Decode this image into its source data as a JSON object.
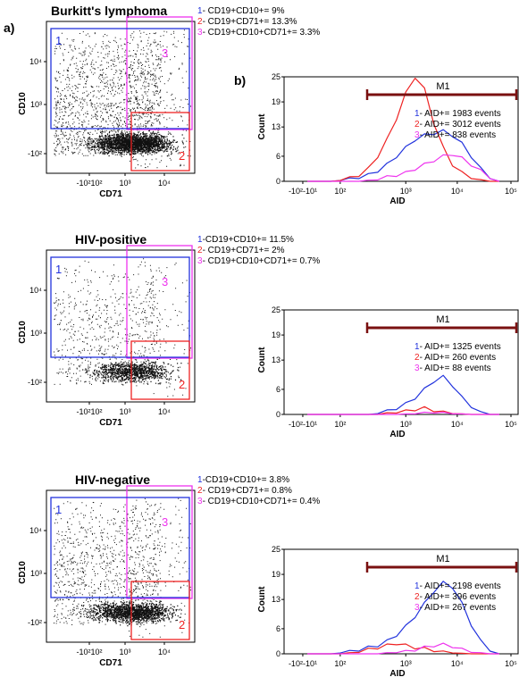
{
  "figure": {
    "label_a": "a)",
    "label_b": "b)"
  },
  "colors": {
    "blue": "#2233dd",
    "red": "#ee2222",
    "magenta": "#ee33ee",
    "marker": "#7a1010",
    "dots": "#111111"
  },
  "panels": [
    {
      "title": "Burkitt's lymphoma",
      "scatter": {
        "xlabel": "CD71",
        "ylabel": "CD10",
        "xticks": [
          "-10²10²",
          "10³",
          "10⁴"
        ],
        "yticks": [
          "10⁴",
          "10³",
          "-10²"
        ],
        "density": "high"
      },
      "gates": [
        {
          "id": "1",
          "num": "1",
          "text": "- CD19+CD10+= 9%",
          "color": "blue"
        },
        {
          "id": "2",
          "num": "2",
          "text": "- CD19+CD71+= 13.3%",
          "color": "red"
        },
        {
          "id": "3",
          "num": "3",
          "text": "- CD19+CD10+CD71+= 3.3%",
          "color": "magenta"
        }
      ],
      "histogram": {
        "marker_label": "M1",
        "xlabel": "AID",
        "ylabel": "Count",
        "yticks": [
          "25",
          "19",
          "13",
          "6",
          "0"
        ],
        "xticks": [
          "-10²-10¹",
          "10²",
          "10³",
          "10⁴",
          "10⁵"
        ],
        "legend": [
          {
            "num": "1",
            "text": "- AID+= 1983 events",
            "color": "blue"
          },
          {
            "num": "2",
            "text": "- AID+= 3012 events",
            "color": "red"
          },
          {
            "num": "3",
            "text": "- AID+= 838 events",
            "color": "magenta"
          }
        ]
      }
    },
    {
      "title": "HIV-positive",
      "scatter": {
        "xlabel": "CD71",
        "ylabel": "CD10",
        "xticks": [
          "-10²10²",
          "10³",
          "10⁴"
        ],
        "yticks": [
          "10⁴",
          "10³",
          "-10²"
        ],
        "density": "low"
      },
      "gates": [
        {
          "id": "1",
          "num": "1",
          "text": "-CD19+CD10+= 11.5%",
          "color": "blue"
        },
        {
          "id": "2",
          "num": "2",
          "text": "- CD19+CD71+= 2%",
          "color": "red"
        },
        {
          "id": "3",
          "num": "3",
          "text": "- CD19+CD10+CD71+= 0.7%",
          "color": "magenta"
        }
      ],
      "histogram": {
        "marker_label": "M1",
        "xlabel": "AID",
        "ylabel": "Count",
        "yticks": [
          "25",
          "19",
          "13",
          "6",
          "0"
        ],
        "xticks": [
          "-10²-10¹",
          "10²",
          "10³",
          "10⁴",
          "10⁵"
        ],
        "legend": [
          {
            "num": "1",
            "text": "- AID+= 1325 events",
            "color": "blue"
          },
          {
            "num": "2",
            "text": "- AID+= 260 events",
            "color": "red"
          },
          {
            "num": "3",
            "text": "- AID+= 88 events",
            "color": "magenta"
          }
        ]
      }
    },
    {
      "title": "HIV-negative",
      "scatter": {
        "xlabel": "CD71",
        "ylabel": "CD10",
        "xticks": [
          "-10²10²",
          "10³",
          "10⁴"
        ],
        "yticks": [
          "10⁴",
          "10³",
          "-10²"
        ],
        "density": "medium"
      },
      "gates": [
        {
          "id": "1",
          "num": "1",
          "text": "-CD19+CD10+= 3.8%",
          "color": "blue"
        },
        {
          "id": "2",
          "num": "2",
          "text": "- CD19+CD71+= 0.8%",
          "color": "red"
        },
        {
          "id": "3",
          "num": "3",
          "text": "- CD19+CD10+CD71+= 0.4%",
          "color": "magenta"
        }
      ],
      "histogram": {
        "marker_label": "M1",
        "xlabel": "AID",
        "ylabel": "Count",
        "yticks": [
          "25",
          "19",
          "13",
          "6",
          "0"
        ],
        "xticks": [
          "-10²-10¹",
          "10²",
          "10³",
          "10⁴",
          "10⁵"
        ],
        "legend": [
          {
            "num": "1",
            "text": "- AID+= 2198 events",
            "color": "blue"
          },
          {
            "num": "2",
            "text": "- AID+= 396 events",
            "color": "red"
          },
          {
            "num": "3",
            "text": "- AID+= 267 events",
            "color": "magenta"
          }
        ]
      }
    }
  ],
  "chart_data": [
    {
      "type": "histogram",
      "panel": "Burkitt's lymphoma",
      "ylabel": "Count",
      "xlabel": "AID",
      "ylim": [
        0,
        25
      ],
      "x": [
        0.5,
        0.8,
        1.0,
        1.2,
        1.4,
        1.6,
        1.8,
        2.0,
        2.2,
        2.4,
        2.6,
        2.8,
        3.0,
        3.2,
        3.4,
        3.6,
        3.8,
        4.0,
        4.2,
        4.4,
        4.6
      ],
      "series": [
        {
          "name": "1",
          "values": [
            0,
            0,
            0,
            0.3,
            0.6,
            1,
            1.5,
            2.5,
            4,
            6,
            8,
            10,
            11,
            11.5,
            12,
            11,
            9,
            6,
            3,
            1,
            0
          ]
        },
        {
          "name": "2",
          "values": [
            0,
            0,
            0,
            0.3,
            0.8,
            1.5,
            3,
            6,
            10,
            15,
            21,
            25,
            22,
            14,
            8,
            4,
            2,
            1,
            0.3,
            0,
            0
          ]
        },
        {
          "name": "3",
          "values": [
            0,
            0,
            0,
            0,
            0,
            0,
            0.2,
            0.5,
            1,
            1.5,
            2,
            3,
            4,
            5,
            6,
            6.5,
            5.5,
            4,
            2.5,
            1,
            0
          ]
        }
      ],
      "marker": {
        "label": "M1",
        "range": [
          2.5,
          5.0
        ]
      }
    },
    {
      "type": "histogram",
      "panel": "HIV-positive",
      "ylabel": "Count",
      "xlabel": "AID",
      "ylim": [
        0,
        25
      ],
      "x": [
        0.5,
        0.8,
        1.0,
        1.2,
        1.4,
        1.6,
        1.8,
        2.0,
        2.2,
        2.4,
        2.6,
        2.8,
        3.0,
        3.2,
        3.4,
        3.6,
        3.8,
        4.0,
        4.2,
        4.4,
        4.6
      ],
      "series": [
        {
          "name": "1",
          "values": [
            0,
            0,
            0,
            0,
            0,
            0,
            0,
            0.3,
            0.8,
            1.5,
            2.5,
            4,
            6,
            8,
            9,
            7,
            4,
            2,
            0.5,
            0,
            0
          ]
        },
        {
          "name": "2",
          "values": [
            0,
            0,
            0,
            0,
            0,
            0,
            0,
            0,
            0.3,
            0.5,
            0.8,
            1.2,
            1.5,
            1,
            0.6,
            0.3,
            0.1,
            0,
            0,
            0,
            0
          ]
        },
        {
          "name": "3",
          "values": [
            0,
            0,
            0,
            0,
            0,
            0,
            0,
            0,
            0,
            0,
            0.1,
            0.2,
            0.4,
            0.5,
            0.4,
            0.2,
            0.1,
            0,
            0,
            0,
            0
          ]
        }
      ],
      "marker": {
        "label": "M1",
        "range": [
          2.5,
          5.0
        ]
      }
    },
    {
      "type": "histogram",
      "panel": "HIV-negative",
      "ylabel": "Count",
      "xlabel": "AID",
      "ylim": [
        0,
        25
      ],
      "x": [
        0.5,
        0.8,
        1.0,
        1.2,
        1.4,
        1.6,
        1.8,
        2.0,
        2.2,
        2.4,
        2.6,
        2.8,
        3.0,
        3.2,
        3.4,
        3.6,
        3.8,
        4.0,
        4.2,
        4.4,
        4.6
      ],
      "series": [
        {
          "name": "1",
          "values": [
            0,
            0,
            0,
            0.3,
            0.6,
            1,
            1.5,
            2,
            3,
            4.5,
            6.5,
            9,
            12,
            15,
            17,
            16,
            12,
            7,
            3,
            1,
            0
          ]
        },
        {
          "name": "2",
          "values": [
            0,
            0,
            0,
            0,
            0.2,
            0.5,
            1,
            1.5,
            2,
            2.5,
            2,
            1.5,
            1.2,
            0.8,
            0.5,
            0.3,
            0.1,
            0,
            0,
            0,
            0
          ]
        },
        {
          "name": "3",
          "values": [
            0,
            0,
            0,
            0,
            0,
            0,
            0,
            0,
            0.2,
            0.4,
            0.6,
            1,
            1.5,
            2,
            2.2,
            1.8,
            1,
            0.5,
            0.2,
            0,
            0
          ]
        }
      ],
      "marker": {
        "label": "M1",
        "range": [
          2.5,
          5.0
        ]
      }
    }
  ]
}
